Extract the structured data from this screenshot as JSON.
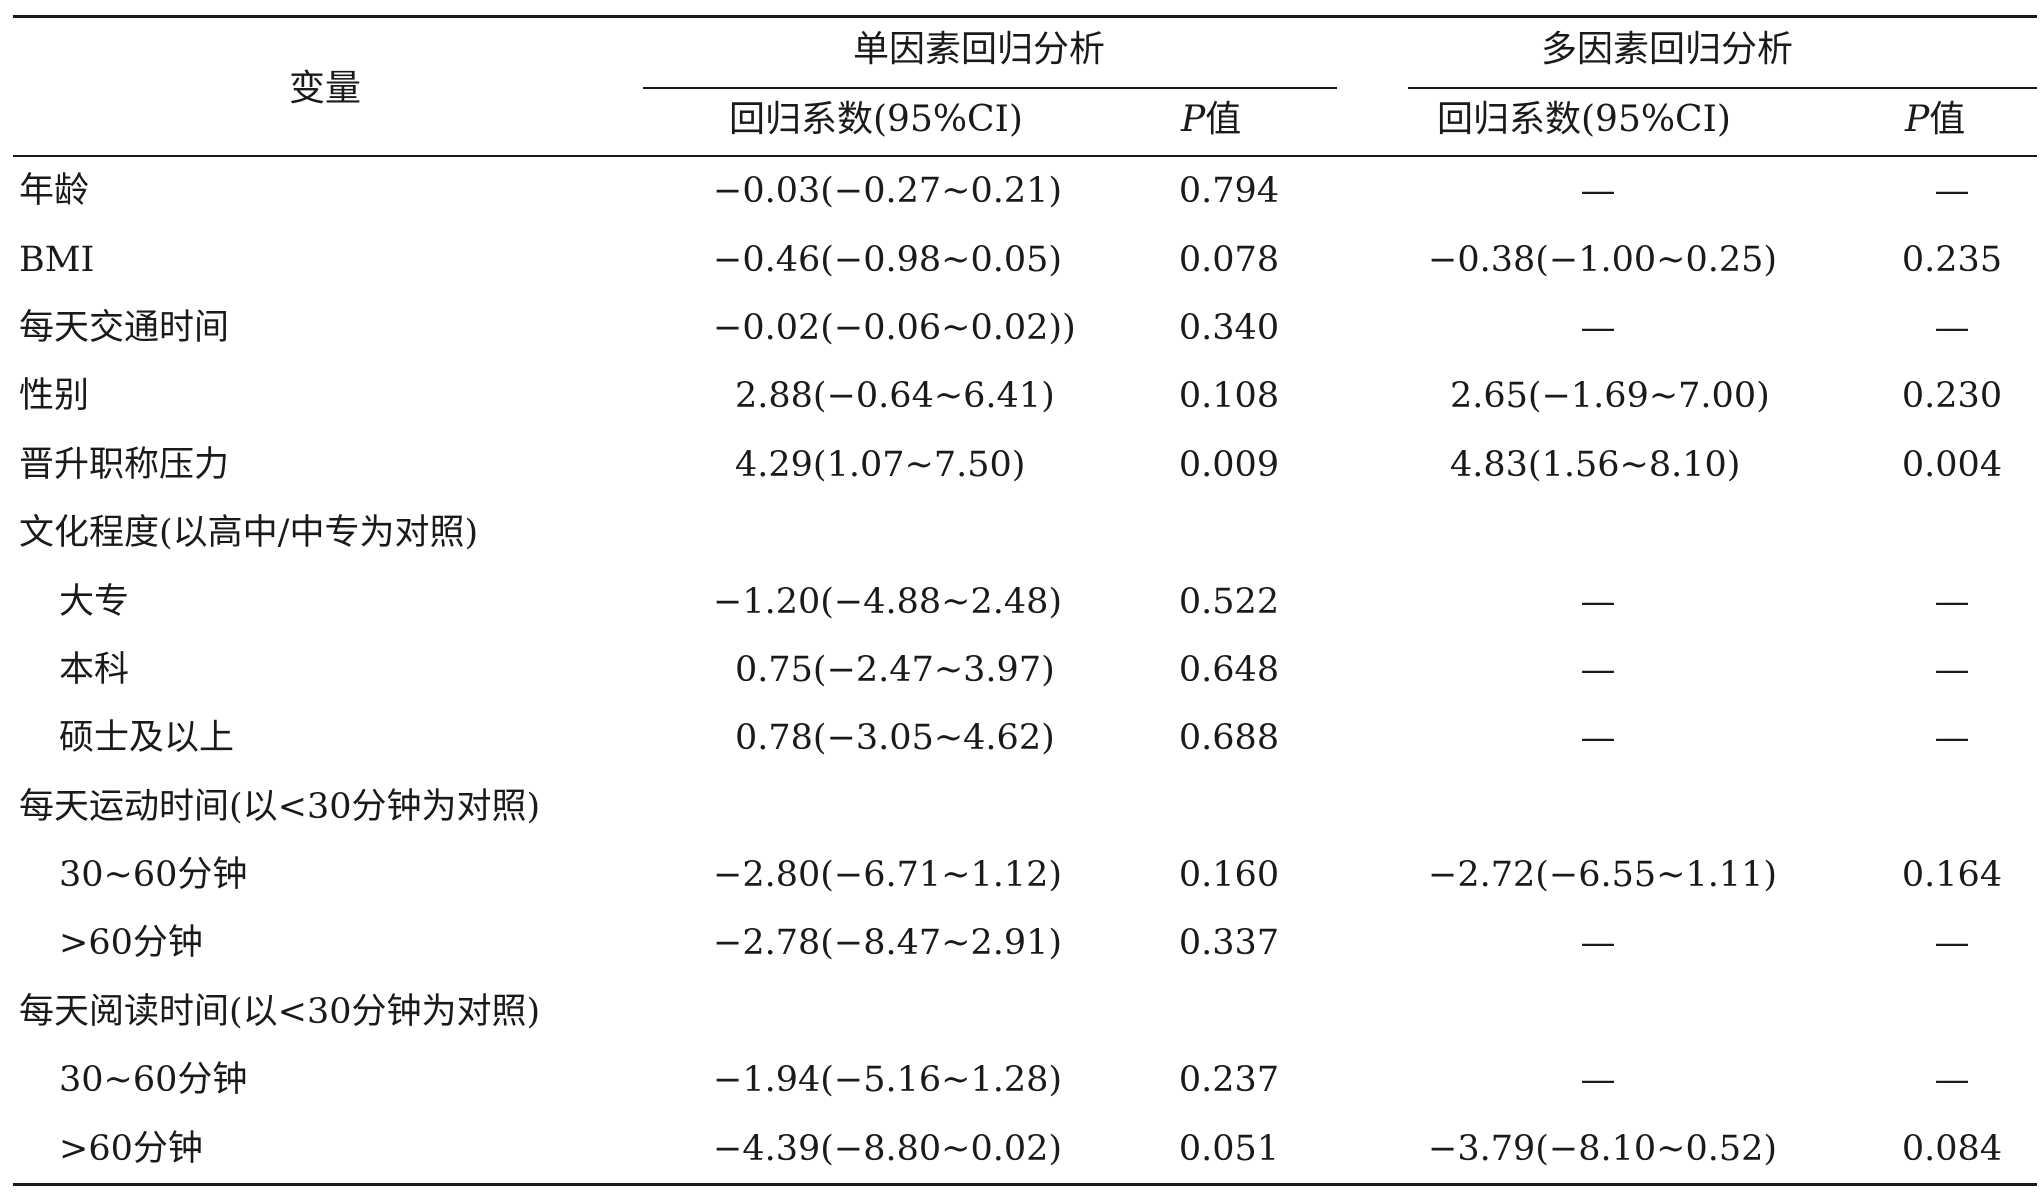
{
  "header": {
    "variable": "变量",
    "group_uni": "单因素回归分析",
    "group_multi": "多因素回归分析",
    "coef_uni": "回归系数(95%CI)",
    "p_uni_italic": "P",
    "p_uni_suffix": "值",
    "coef_multi": "回归系数(95%CI)",
    "p_multi_italic": "P",
    "p_multi_suffix": "值"
  },
  "rows": [
    {
      "var": "年龄",
      "uni_coef": "−0.03(−0.27~0.21)",
      "uni_p": "0.794",
      "multi_coef": "—",
      "multi_p": "—"
    },
    {
      "var": "BMI",
      "uni_coef": "−0.46(−0.98~0.05)",
      "uni_p": "0.078",
      "multi_coef": "−0.38(−1.00~0.25)",
      "multi_p": "0.235"
    },
    {
      "var": "每天交通时间",
      "uni_coef": "−0.02(−0.06~0.02))",
      "uni_p": "0.340",
      "multi_coef": "—",
      "multi_p": "—"
    },
    {
      "var": "性别",
      "uni_coef": "2.88(−0.64~6.41)",
      "uni_p": "0.108",
      "multi_coef": "2.65(−1.69~7.00)",
      "multi_p": "0.230"
    },
    {
      "var": "晋升职称压力",
      "uni_coef": "4.29(1.07~7.50)",
      "uni_p": "0.009",
      "multi_coef": "4.83(1.56~8.10)",
      "multi_p": "0.004"
    },
    {
      "var": "文化程度(以高中/中专为对照)",
      "uni_coef": "",
      "uni_p": "",
      "multi_coef": "",
      "multi_p": ""
    },
    {
      "var": "大专",
      "uni_coef": "−1.20(−4.88~2.48)",
      "uni_p": "0.522",
      "multi_coef": "—",
      "multi_p": "—"
    },
    {
      "var": "本科",
      "uni_coef": "0.75(−2.47~3.97)",
      "uni_p": "0.648",
      "multi_coef": "—",
      "multi_p": "—"
    },
    {
      "var": "硕士及以上",
      "uni_coef": "0.78(−3.05~4.62)",
      "uni_p": "0.688",
      "multi_coef": "—",
      "multi_p": "—"
    },
    {
      "var": "每天运动时间(以<30分钟为对照)",
      "uni_coef": "",
      "uni_p": "",
      "multi_coef": "",
      "multi_p": ""
    },
    {
      "var": "30~60分钟",
      "uni_coef": "−2.80(−6.71~1.12)",
      "uni_p": "0.160",
      "multi_coef": "−2.72(−6.55~1.11)",
      "multi_p": "0.164"
    },
    {
      "var": ">60分钟",
      "uni_coef": "−2.78(−8.47~2.91)",
      "uni_p": "0.337",
      "multi_coef": "—",
      "multi_p": "—"
    },
    {
      "var": "每天阅读时间(以<30分钟为对照)",
      "uni_coef": "",
      "uni_p": "",
      "multi_coef": "",
      "multi_p": ""
    },
    {
      "var": "30~60分钟",
      "uni_coef": "−1.94(−5.16~1.28)",
      "uni_p": "0.237",
      "multi_coef": "—",
      "multi_p": "—"
    },
    {
      "var": ">60分钟",
      "uni_coef": "−4.39(−8.80~0.02)",
      "uni_p": "0.051",
      "multi_coef": "−3.79(−8.10~0.52)",
      "multi_p": "0.084"
    }
  ]
}
